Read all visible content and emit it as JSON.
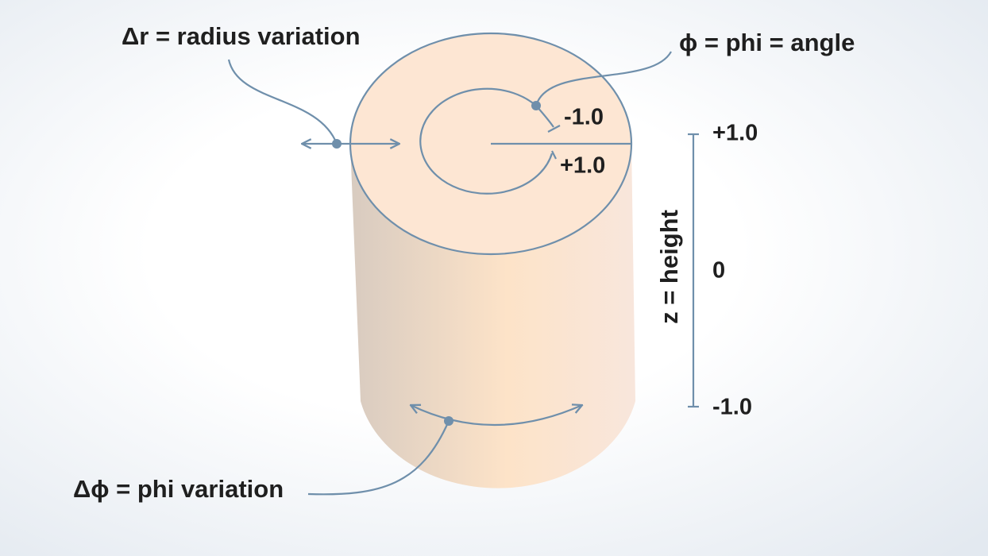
{
  "labels": {
    "radius": "Δr = radius variation",
    "phi": "ϕ = phi = angle",
    "phi_variation": "Δϕ = phi variation"
  },
  "phi_range": {
    "start": "-1.0",
    "end": "+1.0"
  },
  "height_axis": {
    "title": "z = height",
    "top": "+1.0",
    "middle": "0",
    "bottom": "-1.0"
  }
}
